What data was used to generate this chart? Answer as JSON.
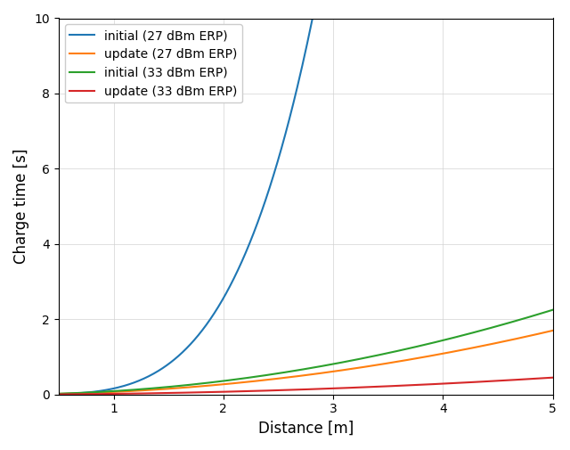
{
  "title": "",
  "xlabel": "Distance [m]",
  "ylabel": "Charge time [s]",
  "xlim": [
    0.5,
    5.0
  ],
  "ylim": [
    0,
    10
  ],
  "xticks": [
    1,
    2,
    3,
    4,
    5
  ],
  "yticks": [
    0,
    2,
    4,
    6,
    8,
    10
  ],
  "series": [
    {
      "label": "initial (27 dBm ERP)",
      "color": "#1f77b4",
      "scale": 0.16,
      "exponent": 4.0
    },
    {
      "label": "update (27 dBm ERP)",
      "color": "#ff7f0e",
      "scale": 0.068,
      "exponent": 2.0
    },
    {
      "label": "initial (33 dBm ERP)",
      "color": "#2ca02c",
      "scale": 0.09,
      "exponent": 2.0
    },
    {
      "label": "update (33 dBm ERP)",
      "color": "#d62728",
      "scale": 0.018,
      "exponent": 2.0
    }
  ],
  "grid": true,
  "legend_loc": "upper left",
  "figsize": [
    6.4,
    5.05
  ],
  "dpi": 100
}
